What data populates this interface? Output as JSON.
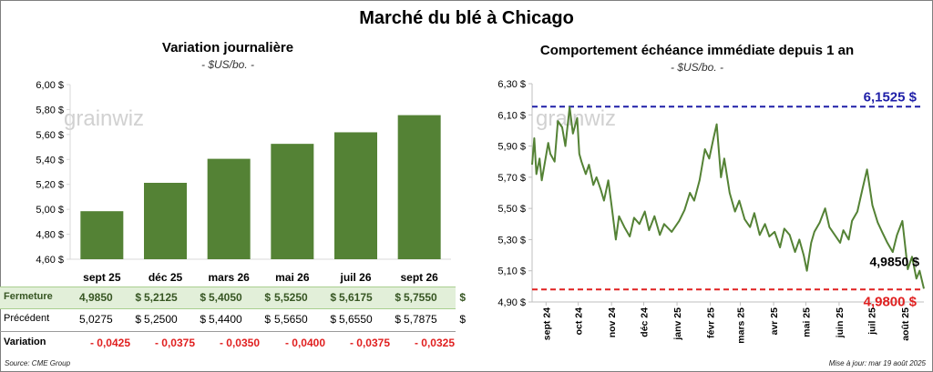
{
  "page": {
    "title": "Marché du blé à Chicago",
    "source": "Source: CME Group",
    "updated": "Mise à jour: mar 19 août 2025",
    "watermark": "grainwiz"
  },
  "left_panel": {
    "title": "Variation journalière",
    "subtitle": "- $US/bo. -",
    "currency": "$",
    "row_labels": {
      "close": "Fermeture",
      "previous": "Précédent",
      "change": "Variation"
    },
    "close": [
      "4,9850",
      "5,2125",
      "5,4050",
      "5,5250",
      "5,6175",
      "5,7550"
    ],
    "previous": [
      "5,0275",
      "5,2500",
      "5,4400",
      "5,5650",
      "5,6550",
      "5,7875"
    ],
    "change": [
      "- 0,0425",
      "- 0,0375",
      "- 0,0350",
      "- 0,0400",
      "- 0,0375",
      "- 0,0325"
    ]
  },
  "right_panel": {
    "title": "Comportement échéance immédiate depuis 1 an",
    "subtitle": "- $US/bo. -"
  },
  "chart_data": [
    {
      "type": "bar",
      "title": "Variation journalière",
      "categories": [
        "sept 25",
        "déc 25",
        "mars 26",
        "mai 26",
        "juil 26",
        "sept 26"
      ],
      "values": [
        4.985,
        5.2125,
        5.405,
        5.525,
        5.6175,
        5.755
      ],
      "ylim": [
        4.6,
        6.0
      ],
      "yticks": [
        4.6,
        4.8,
        5.0,
        5.2,
        5.4,
        5.6,
        5.8,
        6.0
      ],
      "ytick_labels": [
        "4,60 $",
        "4,80 $",
        "5,00 $",
        "5,20 $",
        "5,40 $",
        "5,60 $",
        "5,80 $",
        "6,00 $"
      ],
      "color": "#548235",
      "grid": false
    },
    {
      "type": "line",
      "title": "Comportement échéance immédiate depuis 1 an",
      "ylim": [
        4.9,
        6.3
      ],
      "yticks": [
        4.9,
        5.1,
        5.3,
        5.5,
        5.7,
        5.9,
        6.1,
        6.3
      ],
      "ytick_labels": [
        "4,90 $",
        "5,10 $",
        "5,30 $",
        "5,50 $",
        "5,70 $",
        "5,90 $",
        "6,10 $",
        "6,30 $"
      ],
      "xlim": [
        "2024-08-19",
        "2025-08-19"
      ],
      "xtick_dates": [
        "2024-09-01",
        "2024-10-01",
        "2024-11-01",
        "2024-12-01",
        "2025-01-01",
        "2025-02-01",
        "2025-03-01",
        "2025-04-01",
        "2025-05-01",
        "2025-06-01",
        "2025-07-01",
        "2025-08-01"
      ],
      "xtick_labels": [
        "sept 24",
        "oct 24",
        "nov 24",
        "déc 24",
        "janv 25",
        "févr 25",
        "mars 25",
        "avr 25",
        "mai 25",
        "juin 25",
        "juil 25",
        "août 25"
      ],
      "series": [
        {
          "color": "#548235",
          "x": [
            "2024-08-19",
            "2024-08-21",
            "2024-08-23",
            "2024-08-26",
            "2024-08-28",
            "2024-08-30",
            "2024-09-03",
            "2024-09-05",
            "2024-09-09",
            "2024-09-12",
            "2024-09-16",
            "2024-09-19",
            "2024-09-23",
            "2024-09-26",
            "2024-09-30",
            "2024-10-02",
            "2024-10-04",
            "2024-10-08",
            "2024-10-11",
            "2024-10-15",
            "2024-10-18",
            "2024-10-22",
            "2024-10-25",
            "2024-10-29",
            "2024-11-01",
            "2024-11-05",
            "2024-11-08",
            "2024-11-13",
            "2024-11-18",
            "2024-11-22",
            "2024-11-27",
            "2024-12-02",
            "2024-12-06",
            "2024-12-11",
            "2024-12-16",
            "2024-12-20",
            "2024-12-27",
            "2025-01-03",
            "2025-01-08",
            "2025-01-13",
            "2025-01-17",
            "2025-01-22",
            "2025-01-27",
            "2025-01-31",
            "2025-02-04",
            "2025-02-07",
            "2025-02-11",
            "2025-02-14",
            "2025-02-19",
            "2025-02-24",
            "2025-02-28",
            "2025-03-05",
            "2025-03-10",
            "2025-03-14",
            "2025-03-19",
            "2025-03-24",
            "2025-03-28",
            "2025-04-02",
            "2025-04-07",
            "2025-04-11",
            "2025-04-16",
            "2025-04-21",
            "2025-04-25",
            "2025-04-29",
            "2025-05-02",
            "2025-05-06",
            "2025-05-09",
            "2025-05-14",
            "2025-05-19",
            "2025-05-23",
            "2025-05-28",
            "2025-06-02",
            "2025-06-05",
            "2025-06-10",
            "2025-06-13",
            "2025-06-18",
            "2025-06-23",
            "2025-06-27",
            "2025-07-02",
            "2025-07-07",
            "2025-07-11",
            "2025-07-16",
            "2025-07-21",
            "2025-07-25",
            "2025-07-30",
            "2025-08-04",
            "2025-08-08",
            "2025-08-12",
            "2025-08-15",
            "2025-08-19"
          ],
          "y": [
            5.78,
            5.95,
            5.72,
            5.82,
            5.68,
            5.76,
            5.92,
            5.85,
            5.8,
            6.06,
            6.02,
            5.9,
            6.15,
            5.98,
            6.08,
            5.85,
            5.8,
            5.72,
            5.78,
            5.65,
            5.7,
            5.62,
            5.55,
            5.68,
            5.52,
            5.3,
            5.45,
            5.38,
            5.32,
            5.44,
            5.4,
            5.48,
            5.36,
            5.45,
            5.33,
            5.4,
            5.35,
            5.42,
            5.49,
            5.6,
            5.55,
            5.68,
            5.88,
            5.82,
            5.95,
            6.04,
            5.7,
            5.82,
            5.6,
            5.48,
            5.55,
            5.43,
            5.38,
            5.47,
            5.33,
            5.4,
            5.32,
            5.35,
            5.25,
            5.37,
            5.33,
            5.22,
            5.3,
            5.2,
            5.1,
            5.28,
            5.35,
            5.41,
            5.5,
            5.38,
            5.33,
            5.28,
            5.36,
            5.3,
            5.42,
            5.48,
            5.63,
            5.75,
            5.52,
            5.41,
            5.35,
            5.28,
            5.22,
            5.33,
            5.42,
            5.11,
            5.19,
            5.05,
            5.1,
            4.985
          ]
        }
      ],
      "reference_lines": [
        {
          "value": 6.1525,
          "label": "6,1525 $",
          "color": "#1f1fa8",
          "style": "dashed"
        },
        {
          "value": 4.98,
          "label": "4,9800 $",
          "color": "#e02020",
          "style": "dashed"
        }
      ],
      "annotations": [
        {
          "label": "4,9850 $",
          "value": 4.985
        }
      ]
    }
  ]
}
